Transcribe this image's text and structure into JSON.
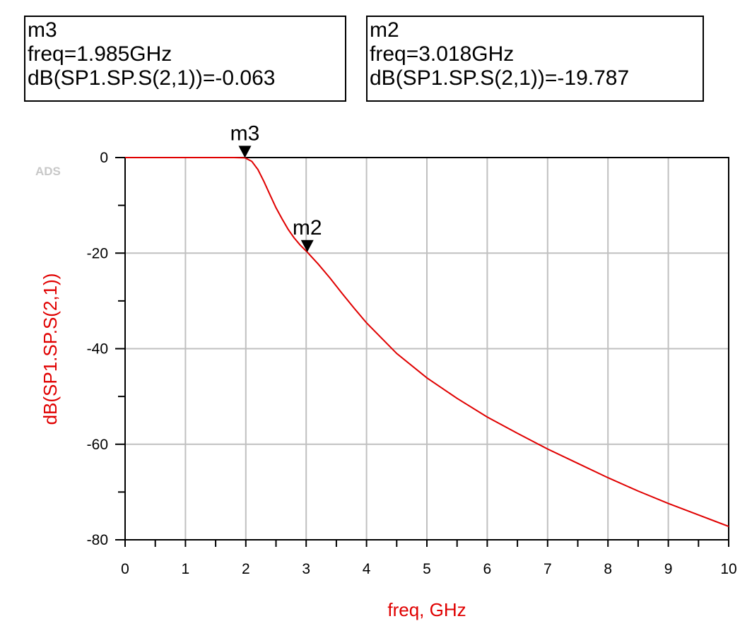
{
  "markers": [
    {
      "name": "m3",
      "freq_line": "freq=1.985GHz",
      "value_line": "dB(SP1.SP.S(2,1))=-0.063",
      "x": 1.985,
      "y": -0.063
    },
    {
      "name": "m2",
      "freq_line": "freq=3.018GHz",
      "value_line": "dB(SP1.SP.S(2,1))=-19.787",
      "x": 3.018,
      "y": -19.787
    }
  ],
  "watermark": "ADS",
  "chart_data": {
    "type": "line",
    "xlabel": "freq, GHz",
    "ylabel": "dB(SP1.SP.S(2,1))",
    "xlim": [
      0,
      10
    ],
    "ylim": [
      -80,
      0
    ],
    "x_ticks": [
      "0",
      "1",
      "2",
      "3",
      "4",
      "5",
      "6",
      "7",
      "8",
      "9",
      "10"
    ],
    "y_ticks": [
      "0",
      "-20",
      "-40",
      "-60",
      "-80"
    ],
    "grid": true,
    "colors": {
      "trace": "#e00000",
      "axis_label": "#e00000",
      "grid": "#c0c0c0"
    },
    "series": [
      {
        "x": [
          0,
          0.5,
          1.0,
          1.5,
          1.8,
          1.985,
          2.1,
          2.2,
          2.3,
          2.4,
          2.5,
          2.6,
          2.7,
          2.8,
          2.9,
          3.018,
          3.2,
          3.4,
          3.6,
          3.8,
          4.0,
          4.5,
          5.0,
          5.5,
          6.0,
          6.5,
          7.0,
          7.5,
          8.0,
          8.5,
          9.0,
          9.5,
          10.0
        ],
        "y": [
          0,
          0,
          0,
          0,
          0,
          -0.063,
          -0.8,
          -2.5,
          -5.0,
          -7.8,
          -10.5,
          -12.8,
          -15.0,
          -16.8,
          -18.3,
          -19.787,
          -22.3,
          -25.3,
          -28.5,
          -31.6,
          -34.6,
          -41.0,
          -46.1,
          -50.4,
          -54.3,
          -57.7,
          -61.0,
          -64.0,
          -67.0,
          -69.8,
          -72.4,
          -74.8,
          -77.2
        ]
      }
    ]
  }
}
